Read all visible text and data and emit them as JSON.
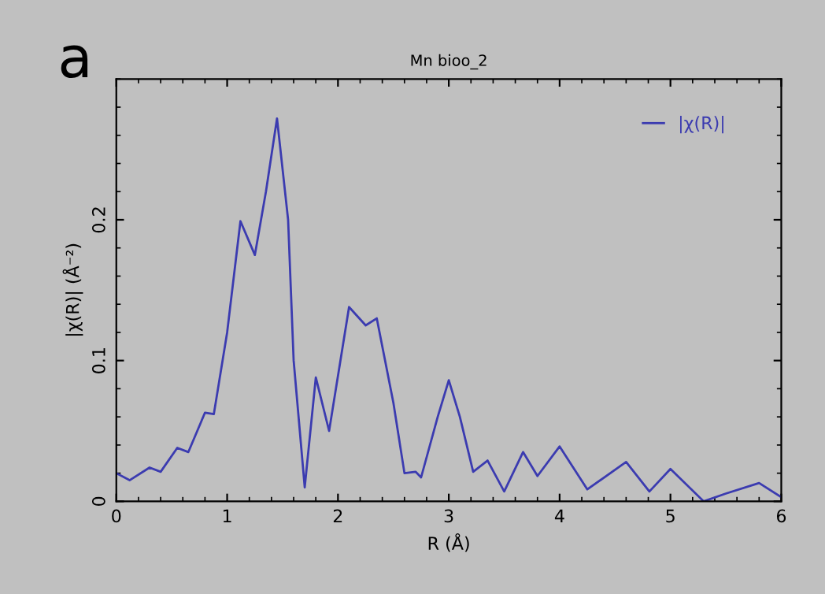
{
  "chart_data": {
    "type": "line",
    "title": "Mn bioo_2",
    "xlabel": "R (Å)",
    "ylabel": "|χ(R)| (Å⁻²)",
    "annotations": [
      "a"
    ],
    "xlim": [
      0,
      6
    ],
    "ylim": [
      0,
      0.3
    ],
    "xticks": [
      0,
      1,
      2,
      3,
      4,
      5,
      6
    ],
    "yticks": [
      0,
      0.1,
      0.2
    ],
    "grid": false,
    "legend": "top right",
    "series": [
      {
        "name": "|χ(R)|",
        "color": "#3b3bb0",
        "x": [
          0,
          0.12,
          0.3,
          0.4,
          0.55,
          0.65,
          0.8,
          0.88,
          1.0,
          1.12,
          1.25,
          1.35,
          1.45,
          1.55,
          1.6,
          1.7,
          1.8,
          1.92,
          2.1,
          2.25,
          2.35,
          2.5,
          2.6,
          2.7,
          2.75,
          2.9,
          3.0,
          3.1,
          3.22,
          3.35,
          3.5,
          3.67,
          3.8,
          4.0,
          4.25,
          4.6,
          4.81,
          5.0,
          5.3,
          5.5,
          5.8,
          6.0
        ],
        "values": [
          0.02,
          0.015,
          0.024,
          0.021,
          0.038,
          0.035,
          0.063,
          0.062,
          0.12,
          0.199,
          0.175,
          0.22,
          0.272,
          0.2,
          0.1,
          0.01,
          0.088,
          0.05,
          0.138,
          0.125,
          0.13,
          0.07,
          0.02,
          0.021,
          0.017,
          0.06,
          0.086,
          0.06,
          0.021,
          0.029,
          0.007,
          0.035,
          0.018,
          0.039,
          0.0085,
          0.028,
          0.007,
          0.023,
          0.0,
          0.0055,
          0.013,
          0.003
        ]
      }
    ]
  }
}
